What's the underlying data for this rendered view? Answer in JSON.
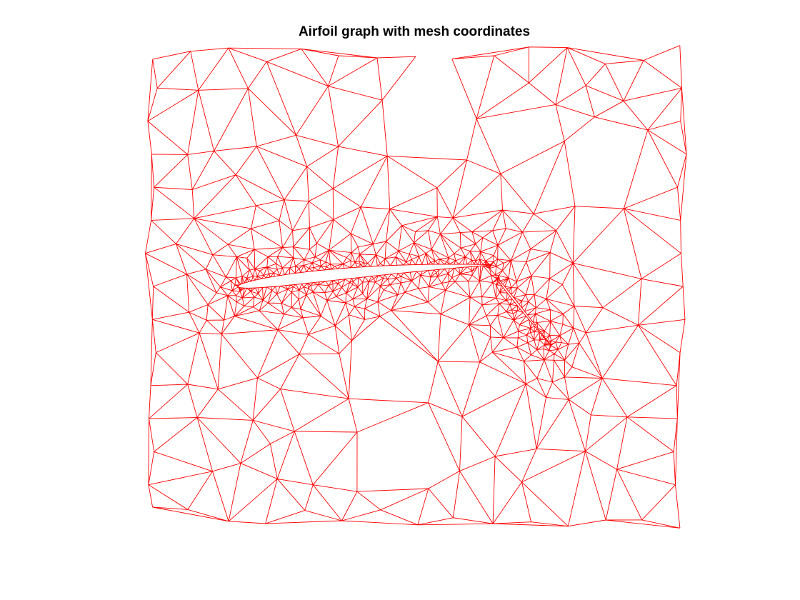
{
  "chart_data": {
    "type": "mesh",
    "title": "Airfoil graph with mesh coordinates",
    "xlabel": "",
    "ylabel": "",
    "axis": "off",
    "grid": false,
    "edge_color": "#ff0000",
    "background_color": "#ffffff",
    "xlim": [
      -1.0,
      1.0
    ],
    "ylim": [
      -0.9,
      0.9
    ],
    "elements": {
      "main_airfoil": {
        "leading_edge": [
          -0.66,
          0.0
        ],
        "trailing_edge": [
          0.28,
          0.08
        ],
        "max_thickness": 0.09,
        "camber": 0.03
      },
      "flap": {
        "leading_edge": [
          0.3,
          0.03
        ],
        "trailing_edge": [
          0.5,
          -0.22
        ],
        "max_thickness": 0.05
      }
    },
    "mesh_density": {
      "far_field_spacing": 0.13,
      "near_body_spacing": 0.012
    }
  }
}
